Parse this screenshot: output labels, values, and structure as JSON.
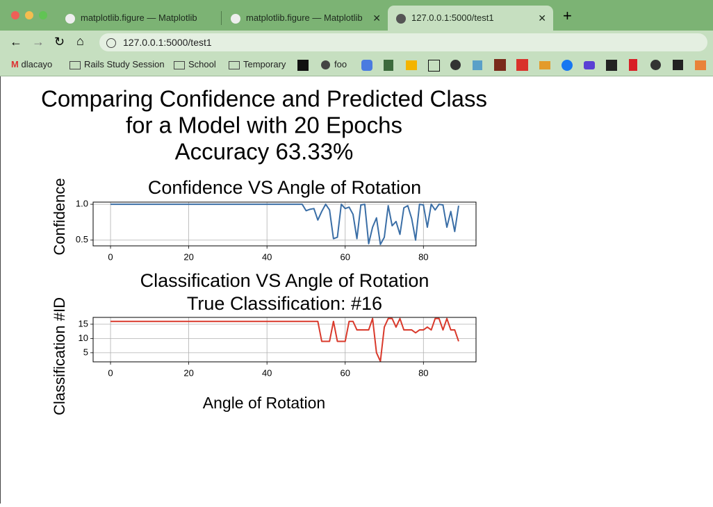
{
  "browser": {
    "tabs": [
      "matplotlib.figure — Matplotlib",
      "matplotlib.figure — Matplotlib",
      "127.0.0.1:5000/test1"
    ],
    "url": "127.0.0.1:5000/test1",
    "bookmarks": [
      "dlacayo",
      "Rails Study Session",
      "School",
      "Temporary",
      "foo"
    ]
  },
  "figure": {
    "title": [
      "Comparing Confidence and Predicted Class",
      "for a Model with 20 Epochs",
      "Accuracy 63.33%"
    ]
  },
  "chart_data": [
    {
      "type": "line",
      "title": "Confidence VS Angle of Rotation",
      "ylabel": "Confidence",
      "color": "#3a6ea6",
      "grid": true,
      "x": [
        0,
        1,
        2,
        3,
        4,
        5,
        6,
        7,
        8,
        9,
        10,
        11,
        12,
        13,
        14,
        15,
        16,
        17,
        18,
        19,
        20,
        21,
        22,
        23,
        24,
        25,
        26,
        27,
        28,
        29,
        30,
        31,
        32,
        33,
        34,
        35,
        36,
        37,
        38,
        39,
        40,
        41,
        42,
        43,
        44,
        45,
        46,
        47,
        48,
        49,
        50,
        51,
        52,
        53,
        54,
        55,
        56,
        57,
        58,
        59,
        60,
        61,
        62,
        63,
        64,
        65,
        66,
        67,
        68,
        69,
        70,
        71,
        72,
        73,
        74,
        75,
        76,
        77,
        78,
        79,
        80,
        81,
        82,
        83,
        84,
        85,
        86,
        87,
        88,
        89
      ],
      "values": [
        1,
        1,
        1,
        1,
        1,
        1,
        1,
        1,
        1,
        1,
        1,
        1,
        1,
        1,
        1,
        1,
        1,
        1,
        1,
        1,
        1,
        1,
        1,
        1,
        1,
        1,
        1,
        1,
        1,
        1,
        1,
        1,
        1,
        1,
        1,
        1,
        1,
        1,
        1,
        1,
        1,
        1,
        1,
        1,
        1,
        1,
        1,
        1,
        1,
        1,
        0.91,
        0.93,
        0.94,
        0.78,
        0.9,
        1.0,
        0.92,
        0.52,
        0.54,
        1.0,
        0.94,
        0.96,
        0.86,
        0.52,
        0.99,
        1.0,
        0.45,
        0.68,
        0.81,
        0.44,
        0.54,
        0.98,
        0.7,
        0.76,
        0.58,
        0.95,
        0.98,
        0.8,
        0.5,
        1.0,
        0.99,
        0.68,
        1.0,
        0.92,
        1.0,
        0.99,
        0.68,
        0.9,
        0.62,
        0.98
      ],
      "xlim": [
        -4.45,
        93.45
      ],
      "xticks": [
        0,
        20,
        40,
        60,
        80
      ],
      "ylim": [
        0.42,
        1.03
      ],
      "yticks": [
        0.5,
        {
          "value": 1,
          "label": "1.0"
        }
      ]
    },
    {
      "type": "line",
      "title": "Classification VS Angle of Rotation",
      "subtitle": "True Classification: #16",
      "ylabel": "Classification #ID",
      "xlabel": "Angle of Rotation",
      "color": "#d9392b",
      "grid": true,
      "x": [
        0,
        1,
        2,
        3,
        4,
        5,
        6,
        7,
        8,
        9,
        10,
        11,
        12,
        13,
        14,
        15,
        16,
        17,
        18,
        19,
        20,
        21,
        22,
        23,
        24,
        25,
        26,
        27,
        28,
        29,
        30,
        31,
        32,
        33,
        34,
        35,
        36,
        37,
        38,
        39,
        40,
        41,
        42,
        43,
        44,
        45,
        46,
        47,
        48,
        49,
        50,
        51,
        52,
        53,
        54,
        55,
        56,
        57,
        58,
        59,
        60,
        61,
        62,
        63,
        64,
        65,
        66,
        67,
        68,
        69,
        70,
        71,
        72,
        73,
        74,
        75,
        76,
        77,
        78,
        79,
        80,
        81,
        82,
        83,
        84,
        85,
        86,
        87,
        88,
        89
      ],
      "values": [
        16,
        16,
        16,
        16,
        16,
        16,
        16,
        16,
        16,
        16,
        16,
        16,
        16,
        16,
        16,
        16,
        16,
        16,
        16,
        16,
        16,
        16,
        16,
        16,
        16,
        16,
        16,
        16,
        16,
        16,
        16,
        16,
        16,
        16,
        16,
        16,
        16,
        16,
        16,
        16,
        16,
        16,
        16,
        16,
        16,
        16,
        16,
        16,
        16,
        16,
        16,
        16,
        16,
        16,
        9,
        9,
        9,
        16,
        9,
        9,
        9,
        16,
        16,
        13,
        13,
        13,
        13,
        17,
        5,
        2,
        14,
        17,
        17,
        14,
        17,
        13,
        13,
        13,
        12,
        13,
        13,
        14,
        13,
        17,
        17,
        13,
        17,
        13,
        13,
        9
      ],
      "xlim": [
        -4.45,
        93.45
      ],
      "xticks": [
        0,
        20,
        40,
        60,
        80
      ],
      "ylim": [
        1.8,
        17.4
      ],
      "yticks": [
        5,
        10,
        15
      ]
    }
  ]
}
